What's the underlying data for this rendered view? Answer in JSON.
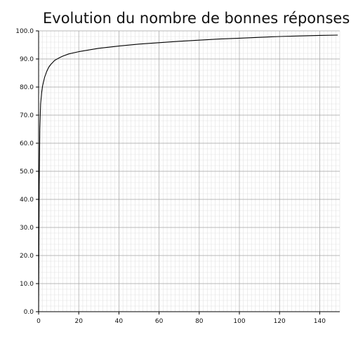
{
  "chart_data": {
    "type": "line",
    "title": "Evolution du nombre de bonnes réponses",
    "xlabel": "",
    "ylabel": "",
    "xlim": [
      0,
      150
    ],
    "ylim": [
      0,
      100
    ],
    "grid": true,
    "x_ticks": [
      "0",
      "20",
      "40",
      "60",
      "80",
      "100",
      "120",
      "140"
    ],
    "y_ticks": [
      "0.0",
      "10.0",
      "20.0",
      "30.0",
      "40.0",
      "50.0",
      "60.0",
      "70.0",
      "80.0",
      "90.0",
      "100.0"
    ],
    "series": [
      {
        "color": "#000000",
        "x": [
          0,
          0.3,
          0.6,
          1,
          1.5,
          2,
          3,
          4,
          5,
          6,
          8,
          10,
          12,
          15,
          20,
          25,
          30,
          40,
          50,
          60,
          70,
          80,
          90,
          100,
          110,
          120,
          130,
          140,
          149
        ],
        "y": [
          0,
          45,
          65,
          74,
          78,
          80.5,
          83.5,
          85.5,
          87,
          88,
          89.5,
          90.3,
          91,
          91.8,
          92.6,
          93.2,
          93.8,
          94.6,
          95.3,
          95.8,
          96.3,
          96.7,
          97.1,
          97.4,
          97.7,
          98,
          98.2,
          98.4,
          98.5
        ]
      }
    ]
  }
}
